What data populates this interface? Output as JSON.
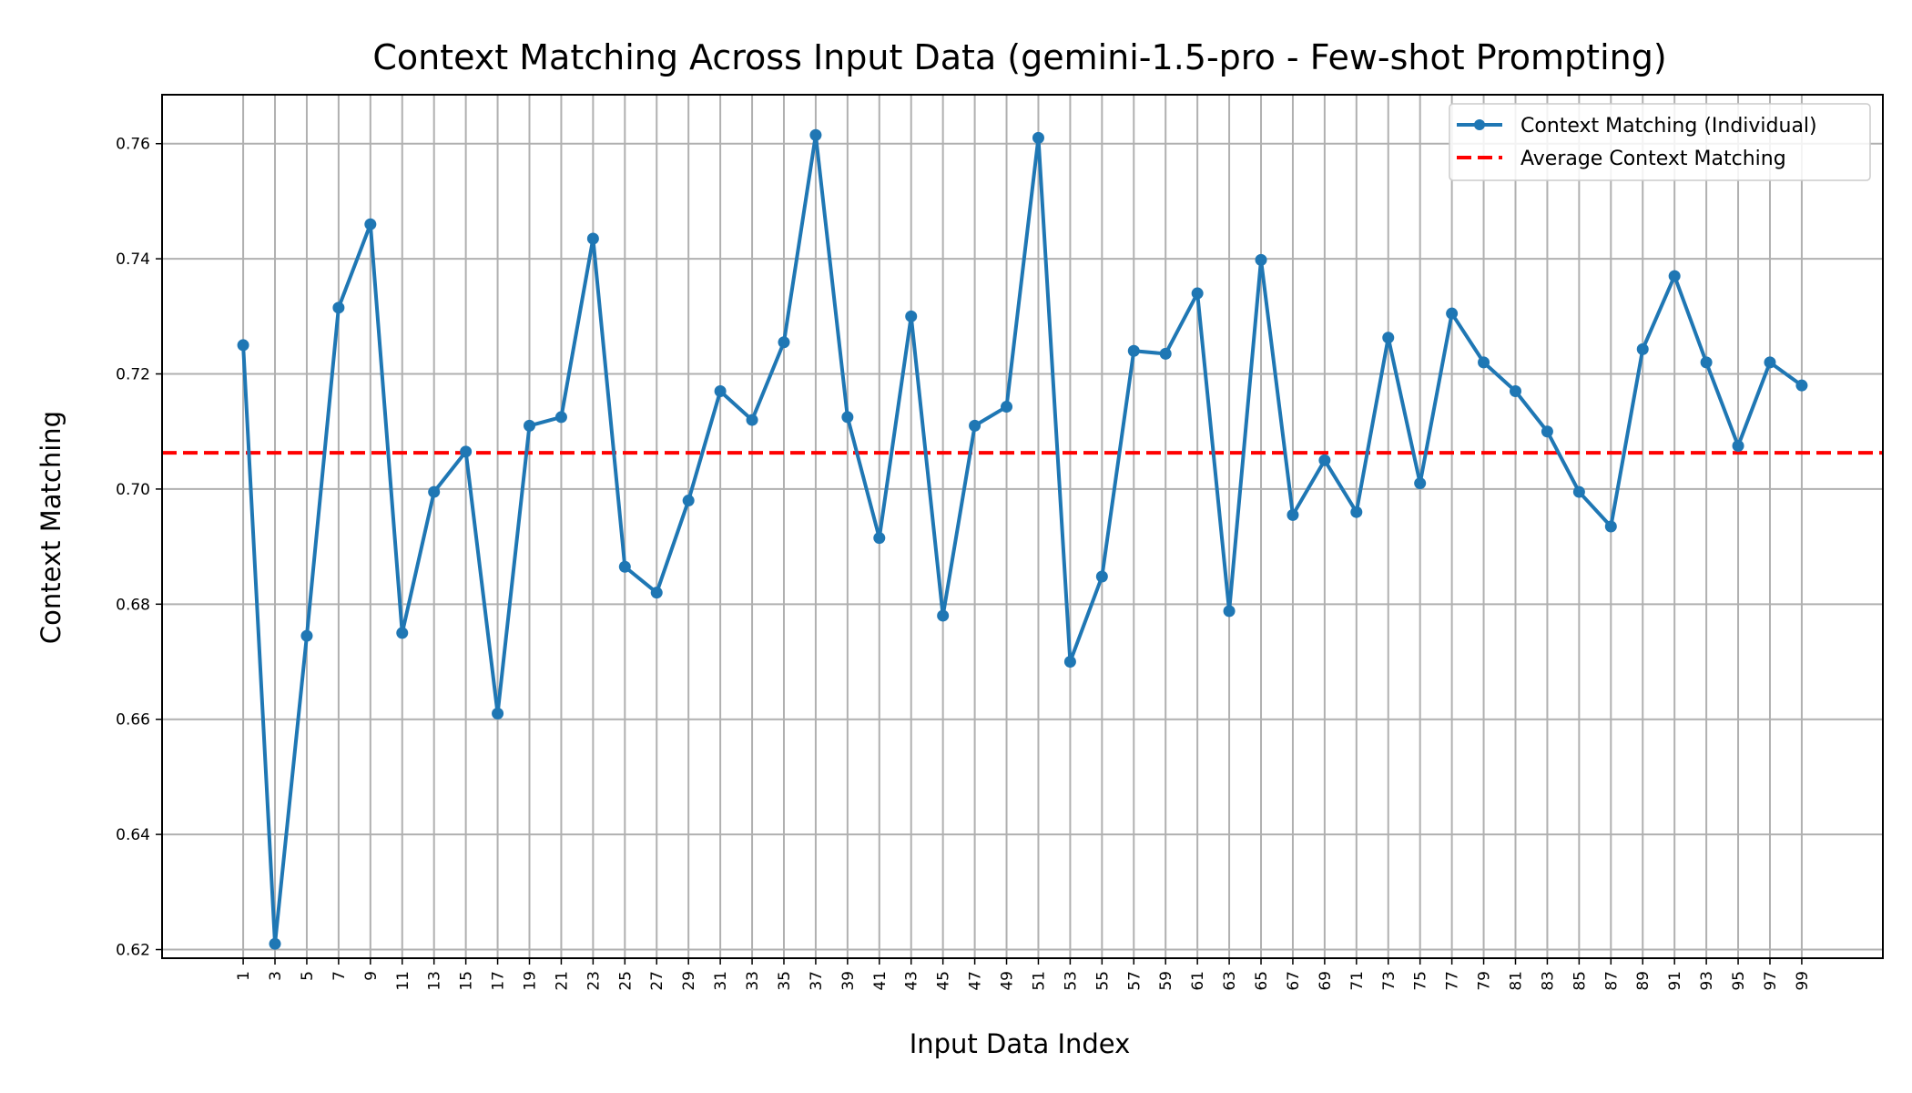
{
  "chart_data": {
    "type": "line",
    "title": "Context Matching Across Input Data (gemini-1.5-pro - Few-shot Prompting)",
    "xlabel": "Input Data Index",
    "ylabel": "Context Matching",
    "x_ticks": [
      1,
      3,
      5,
      7,
      9,
      11,
      13,
      15,
      17,
      19,
      21,
      23,
      25,
      27,
      29,
      31,
      33,
      35,
      37,
      39,
      41,
      43,
      45,
      47,
      49,
      51,
      53,
      55,
      57,
      59,
      61,
      63,
      65,
      67,
      69,
      71,
      73,
      75,
      77,
      79,
      81,
      83,
      85,
      87,
      89,
      91,
      93,
      95,
      97,
      99
    ],
    "y_ticks": [
      "0.62",
      "0.64",
      "0.66",
      "0.68",
      "0.70",
      "0.72",
      "0.74",
      "0.76"
    ],
    "xlim": [
      -4.1,
      104.1
    ],
    "ylim": [
      0.6185,
      0.7685
    ],
    "grid": true,
    "legend_position": "top-right",
    "series": [
      {
        "name": "Context Matching (Individual)",
        "color": "#1f77b4",
        "x": [
          1,
          3,
          5,
          7,
          9,
          11,
          13,
          15,
          17,
          19,
          21,
          23,
          25,
          27,
          29,
          31,
          33,
          35,
          37,
          39,
          41,
          43,
          45,
          47,
          49,
          51,
          53,
          55,
          57,
          59,
          61,
          63,
          65,
          67,
          69,
          71,
          73,
          75,
          77,
          79,
          81,
          83,
          85,
          87,
          89,
          91,
          93,
          95,
          97,
          99
        ],
        "values": [
          0.725,
          0.621,
          0.6745,
          0.7315,
          0.746,
          0.675,
          0.6995,
          0.7065,
          0.661,
          0.711,
          0.7125,
          0.7435,
          0.6865,
          0.682,
          0.698,
          0.717,
          0.712,
          0.7255,
          0.7615,
          0.7125,
          0.6915,
          0.73,
          0.678,
          0.711,
          0.7143,
          0.761,
          0.67,
          0.6848,
          0.724,
          0.7235,
          0.734,
          0.6788,
          0.7398,
          0.6955,
          0.705,
          0.696,
          0.7263,
          0.701,
          0.7305,
          0.722,
          0.717,
          0.71,
          0.6995,
          0.6935,
          0.7243,
          0.737,
          0.722,
          0.7075,
          0.722,
          0.718
        ]
      },
      {
        "name": "Average Context Matching",
        "color": "#ff0000",
        "value": 0.7063
      }
    ]
  }
}
